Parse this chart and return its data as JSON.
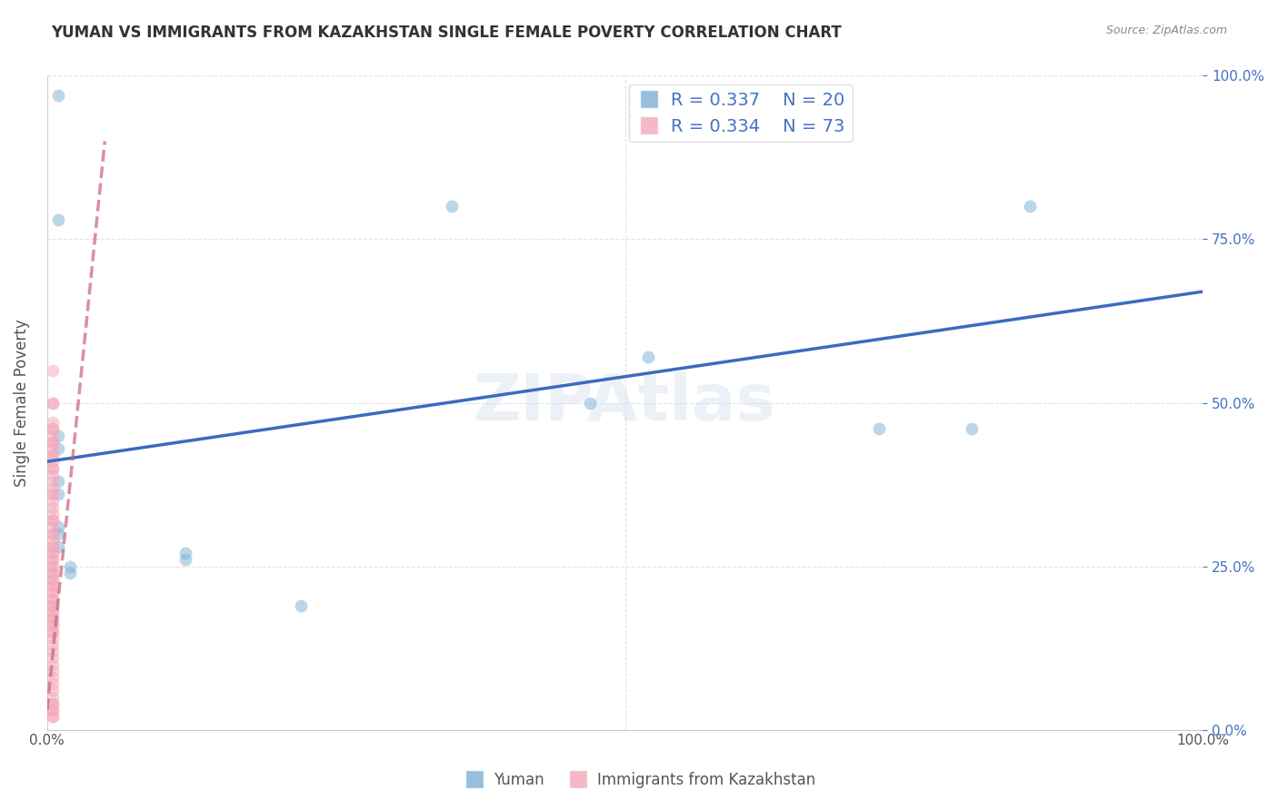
{
  "title": "YUMAN VS IMMIGRANTS FROM KAZAKHSTAN SINGLE FEMALE POVERTY CORRELATION CHART",
  "source": "Source: ZipAtlas.com",
  "xlabel_bottom": "",
  "ylabel": "Single Female Poverty",
  "xlim": [
    0,
    1
  ],
  "ylim": [
    0,
    1
  ],
  "x_ticks": [
    0,
    0.25,
    0.5,
    0.75,
    1.0
  ],
  "x_tick_labels": [
    "0.0%",
    "",
    "",
    "",
    "100.0%"
  ],
  "y_tick_labels_right": [
    "0.0%",
    "25.0%",
    "50.0%",
    "75.0%",
    "100.0%"
  ],
  "background_color": "#ffffff",
  "grid_color": "#dddddd",
  "watermark": "ZIPAtlas",
  "blue_color": "#7bafd4",
  "pink_color": "#f4a7b9",
  "blue_line_color": "#3a6bbf",
  "pink_line_color": "#c96080",
  "legend_R_blue": "R = 0.337",
  "legend_N_blue": "N = 20",
  "legend_R_pink": "R = 0.334",
  "legend_N_pink": "N = 73",
  "legend_label_blue": "Yuman",
  "legend_label_pink": "Immigrants from Kazakhstan",
  "blue_scatter_x": [
    0.01,
    0.01,
    0.35,
    0.01,
    0.01,
    0.47,
    0.52,
    0.72,
    0.8,
    0.12,
    0.12,
    0.22,
    0.85,
    0.01,
    0.01,
    0.01,
    0.01,
    0.01,
    0.02,
    0.02
  ],
  "blue_scatter_y": [
    0.97,
    0.78,
    0.8,
    0.45,
    0.43,
    0.5,
    0.57,
    0.46,
    0.46,
    0.26,
    0.27,
    0.19,
    0.8,
    0.38,
    0.36,
    0.31,
    0.3,
    0.28,
    0.25,
    0.24
  ],
  "pink_scatter_x": [
    0.005,
    0.005,
    0.005,
    0.005,
    0.005,
    0.005,
    0.005,
    0.005,
    0.005,
    0.005,
    0.005,
    0.005,
    0.005,
    0.005,
    0.005,
    0.005,
    0.005,
    0.005,
    0.005,
    0.005,
    0.005,
    0.005,
    0.005,
    0.005,
    0.005,
    0.005,
    0.005,
    0.005,
    0.005,
    0.005,
    0.005,
    0.005,
    0.005,
    0.005,
    0.005,
    0.005,
    0.005,
    0.005,
    0.005,
    0.005,
    0.005,
    0.005,
    0.005,
    0.005,
    0.005,
    0.005,
    0.005,
    0.005,
    0.005,
    0.005,
    0.005,
    0.005,
    0.005,
    0.005,
    0.005,
    0.005,
    0.005,
    0.005,
    0.005,
    0.005,
    0.005,
    0.005,
    0.005,
    0.005,
    0.005,
    0.005,
    0.005,
    0.005,
    0.005,
    0.005,
    0.005,
    0.005,
    0.005
  ],
  "pink_scatter_y": [
    0.55,
    0.5,
    0.5,
    0.47,
    0.46,
    0.46,
    0.45,
    0.44,
    0.44,
    0.43,
    0.42,
    0.42,
    0.41,
    0.4,
    0.4,
    0.39,
    0.38,
    0.37,
    0.36,
    0.36,
    0.35,
    0.34,
    0.33,
    0.32,
    0.32,
    0.31,
    0.3,
    0.3,
    0.29,
    0.28,
    0.28,
    0.27,
    0.27,
    0.26,
    0.26,
    0.25,
    0.25,
    0.24,
    0.24,
    0.23,
    0.23,
    0.22,
    0.22,
    0.21,
    0.21,
    0.2,
    0.2,
    0.19,
    0.19,
    0.18,
    0.18,
    0.17,
    0.17,
    0.16,
    0.16,
    0.15,
    0.15,
    0.14,
    0.13,
    0.12,
    0.11,
    0.1,
    0.09,
    0.08,
    0.07,
    0.06,
    0.05,
    0.04,
    0.03,
    0.03,
    0.02,
    0.02,
    0.04
  ],
  "blue_line_x": [
    0.0,
    1.0
  ],
  "blue_line_y": [
    0.41,
    0.67
  ],
  "pink_line_x": [
    0.0,
    0.05
  ],
  "pink_line_y": [
    0.03,
    0.9
  ],
  "marker_size": 100,
  "marker_alpha": 0.5,
  "line_width": 2.5
}
